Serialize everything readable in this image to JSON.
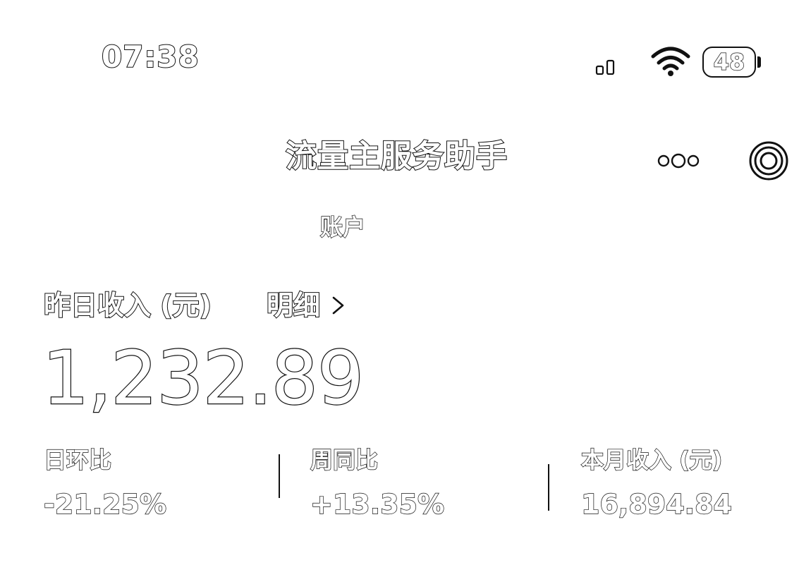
{
  "status_bar": {
    "time": "07:38",
    "battery": "48",
    "icons": [
      "signal-icon",
      "wifi-icon",
      "battery-icon"
    ]
  },
  "nav": {
    "title": "流量主服务助手",
    "icons": [
      "more-icon",
      "target-icon"
    ]
  },
  "account": {
    "label": "账户"
  },
  "income": {
    "label": "昨日收入 (元)",
    "detail_link": "明细",
    "amount": "1,232.89"
  },
  "stats": [
    {
      "label": "日环比",
      "value": "-21.25%"
    },
    {
      "label": "周同比",
      "value": "+13.35%"
    },
    {
      "label": "本月收入 (元)",
      "value": "16,894.84"
    }
  ],
  "colors": {
    "background": "#ffffff",
    "stroke": "#111111"
  }
}
